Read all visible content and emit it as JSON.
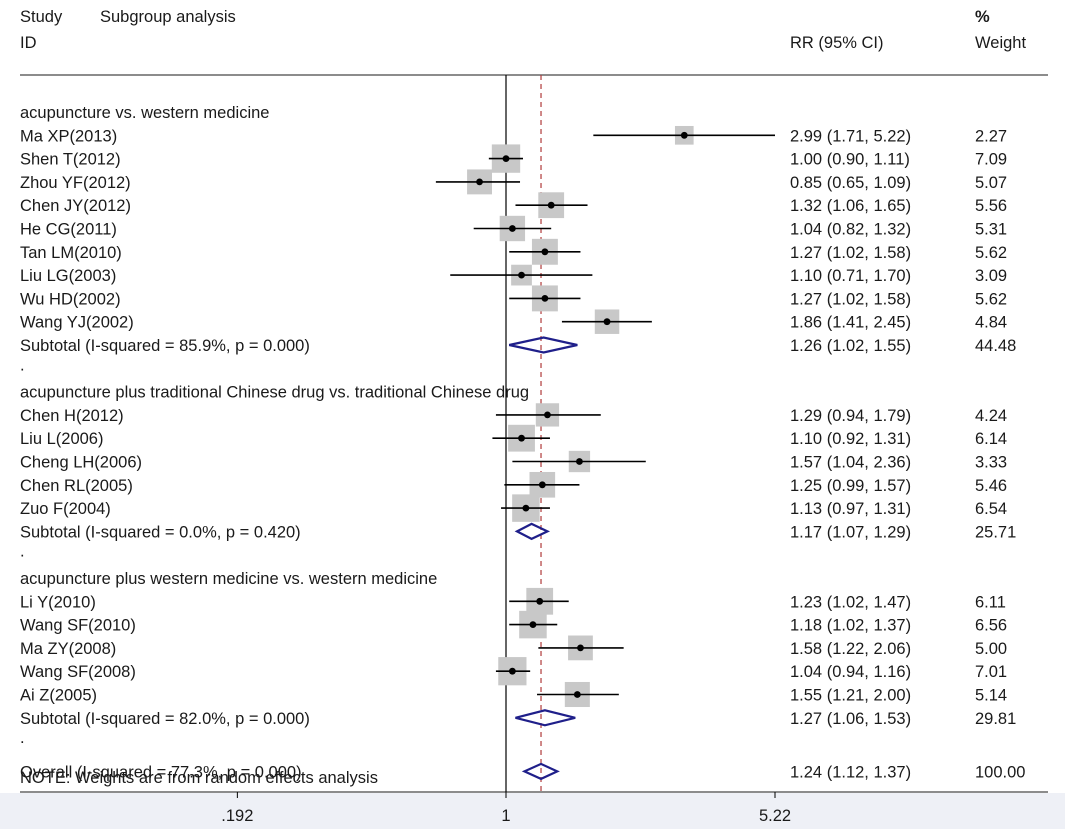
{
  "chart_data": {
    "type": "forest",
    "header": {
      "col1_line1": "Study",
      "col1_title": "Subgroup analysis",
      "col1_line2": "ID",
      "col_effect": "RR (95% CI)",
      "col_weight_line1": "%",
      "col_weight_line2": "Weight"
    },
    "x_axis": {
      "scale": "log",
      "ticks": [
        {
          "value": 0.192,
          "label": ".192"
        },
        {
          "value": 1,
          "label": "1"
        },
        {
          "value": 5.22,
          "label": "5.22"
        }
      ],
      "range": [
        0.192,
        5.22
      ]
    },
    "null_line": 1,
    "overall_line": 1.24,
    "groups": [
      {
        "label": "acupuncture vs. western medicine",
        "studies": [
          {
            "id": "Ma XP(2013)",
            "rr": 2.99,
            "lo": 1.71,
            "hi": 5.22,
            "ci_text": "2.99 (1.71, 5.22)",
            "weight": "2.27"
          },
          {
            "id": "Shen T(2012)",
            "rr": 1.0,
            "lo": 0.9,
            "hi": 1.11,
            "ci_text": "1.00 (0.90, 1.11)",
            "weight": "7.09"
          },
          {
            "id": "Zhou YF(2012)",
            "rr": 0.85,
            "lo": 0.65,
            "hi": 1.09,
            "ci_text": "0.85 (0.65, 1.09)",
            "weight": "5.07"
          },
          {
            "id": "Chen JY(2012)",
            "rr": 1.32,
            "lo": 1.06,
            "hi": 1.65,
            "ci_text": "1.32 (1.06, 1.65)",
            "weight": "5.56"
          },
          {
            "id": "He CG(2011)",
            "rr": 1.04,
            "lo": 0.82,
            "hi": 1.32,
            "ci_text": "1.04 (0.82, 1.32)",
            "weight": "5.31"
          },
          {
            "id": "Tan LM(2010)",
            "rr": 1.27,
            "lo": 1.02,
            "hi": 1.58,
            "ci_text": "1.27 (1.02, 1.58)",
            "weight": "5.62"
          },
          {
            "id": "Liu LG(2003)",
            "rr": 1.1,
            "lo": 0.71,
            "hi": 1.7,
            "ci_text": "1.10 (0.71, 1.70)",
            "weight": "3.09"
          },
          {
            "id": "Wu HD(2002)",
            "rr": 1.27,
            "lo": 1.02,
            "hi": 1.58,
            "ci_text": "1.27 (1.02, 1.58)",
            "weight": "5.62"
          },
          {
            "id": "Wang YJ(2002)",
            "rr": 1.86,
            "lo": 1.41,
            "hi": 2.45,
            "ci_text": "1.86 (1.41, 2.45)",
            "weight": "4.84"
          }
        ],
        "subtotal": {
          "label": "Subtotal  (I-squared = 85.9%, p = 0.000)",
          "rr": 1.26,
          "lo": 1.02,
          "hi": 1.55,
          "ci_text": "1.26 (1.02, 1.55)",
          "weight": "44.48"
        }
      },
      {
        "label": "acupuncture plus traditional Chinese drug vs. traditional Chinese drug",
        "studies": [
          {
            "id": "Chen H(2012)",
            "rr": 1.29,
            "lo": 0.94,
            "hi": 1.79,
            "ci_text": "1.29 (0.94, 1.79)",
            "weight": "4.24"
          },
          {
            "id": "Liu L(2006)",
            "rr": 1.1,
            "lo": 0.92,
            "hi": 1.31,
            "ci_text": "1.10 (0.92, 1.31)",
            "weight": "6.14"
          },
          {
            "id": "Cheng LH(2006)",
            "rr": 1.57,
            "lo": 1.04,
            "hi": 2.36,
            "ci_text": "1.57 (1.04, 2.36)",
            "weight": "3.33"
          },
          {
            "id": "Chen RL(2005)",
            "rr": 1.25,
            "lo": 0.99,
            "hi": 1.57,
            "ci_text": "1.25 (0.99, 1.57)",
            "weight": "5.46"
          },
          {
            "id": "Zuo F(2004)",
            "rr": 1.13,
            "lo": 0.97,
            "hi": 1.31,
            "ci_text": "1.13 (0.97, 1.31)",
            "weight": "6.54"
          }
        ],
        "subtotal": {
          "label": "Subtotal  (I-squared = 0.0%, p = 0.420)",
          "rr": 1.17,
          "lo": 1.07,
          "hi": 1.29,
          "ci_text": "1.17 (1.07, 1.29)",
          "weight": "25.71"
        }
      },
      {
        "label": "acupuncture plus western medicine vs. western medicine",
        "studies": [
          {
            "id": "Li Y(2010)",
            "rr": 1.23,
            "lo": 1.02,
            "hi": 1.47,
            "ci_text": "1.23 (1.02, 1.47)",
            "weight": "6.11"
          },
          {
            "id": "Wang SF(2010)",
            "rr": 1.18,
            "lo": 1.02,
            "hi": 1.37,
            "ci_text": "1.18 (1.02, 1.37)",
            "weight": "6.56"
          },
          {
            "id": "Ma ZY(2008)",
            "rr": 1.58,
            "lo": 1.22,
            "hi": 2.06,
            "ci_text": "1.58 (1.22, 2.06)",
            "weight": "5.00"
          },
          {
            "id": "Wang SF(2008)",
            "rr": 1.04,
            "lo": 0.94,
            "hi": 1.16,
            "ci_text": "1.04 (0.94, 1.16)",
            "weight": "7.01"
          },
          {
            "id": "Ai Z(2005)",
            "rr": 1.55,
            "lo": 1.21,
            "hi": 2.0,
            "ci_text": "1.55 (1.21, 2.00)",
            "weight": "5.14"
          }
        ],
        "subtotal": {
          "label": "Subtotal  (I-squared = 82.0%, p = 0.000)",
          "rr": 1.27,
          "lo": 1.06,
          "hi": 1.53,
          "ci_text": "1.27 (1.06, 1.53)",
          "weight": "29.81"
        }
      }
    ],
    "overall": {
      "label": "Overall  (I-squared = 77.3%, p = 0.000)",
      "rr": 1.24,
      "lo": 1.12,
      "hi": 1.37,
      "ci_text": "1.24 (1.12, 1.37)",
      "weight": "100.00"
    },
    "note": "NOTE: Weights are from random effects analysis",
    "group_separator": ".",
    "colors": {
      "text": "#1a1a1a",
      "ci_line": "#000000",
      "box": "#c8c8c8",
      "diamond": "#1f1f8a",
      "overall_line": "#b03a3a",
      "axis_bg": "#eef0f6"
    }
  }
}
